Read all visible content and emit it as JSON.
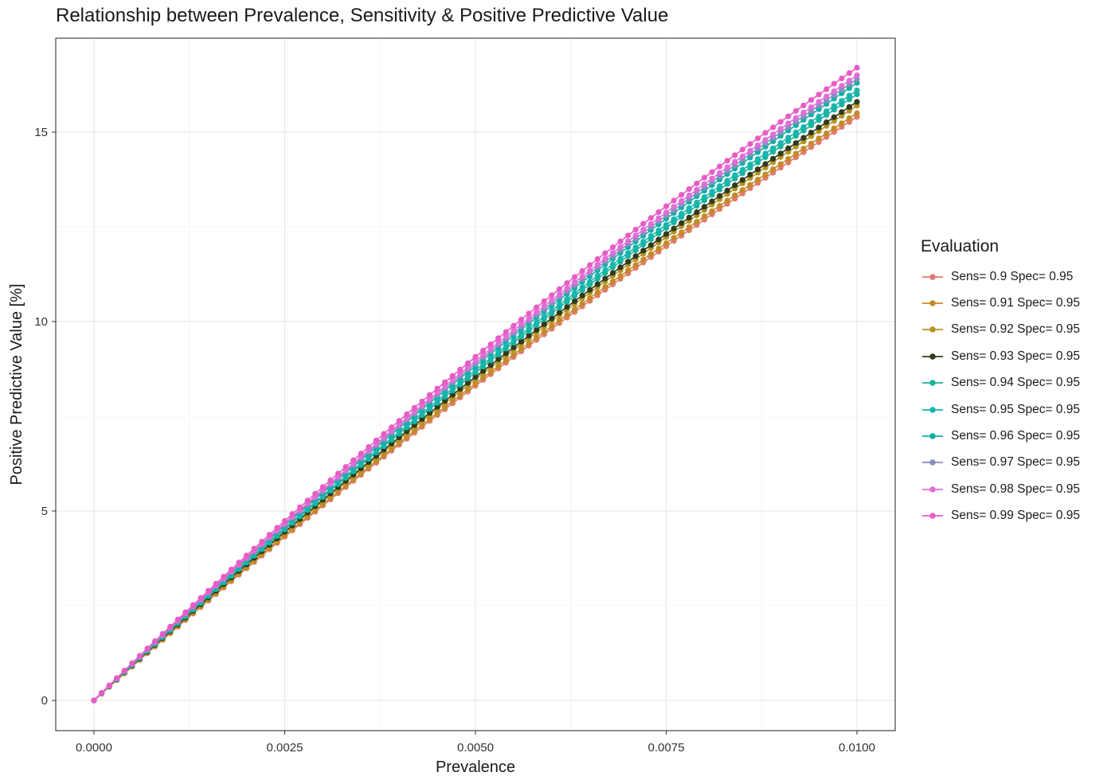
{
  "chart_data": {
    "type": "line",
    "title": "Relationship between Prevalence, Sensitivity & Positive Predictive Value",
    "xlabel": "Prevalence",
    "ylabel": "Positive Predictive Value [%]",
    "xlim": [
      0,
      0.01
    ],
    "ylim": [
      0,
      16.7
    ],
    "x_ticks": [
      "0.0000",
      "0.0025",
      "0.0050",
      "0.0075",
      "0.0100"
    ],
    "y_ticks": [
      "0",
      "5",
      "10",
      "15"
    ],
    "grid": true,
    "markers": true,
    "legend_position": "right",
    "legend_title": "Evaluation",
    "x": {
      "start": 0,
      "end": 0.01,
      "step": 0.0001
    },
    "series": [
      {
        "name": "Sens= 0.9 Spec= 0.95",
        "sensitivity": 0.9,
        "specificity": 0.95,
        "color": "#E07B6C",
        "end_value": 15.4
      },
      {
        "name": "Sens= 0.91 Spec= 0.95",
        "sensitivity": 0.91,
        "specificity": 0.95,
        "color": "#C48A2A",
        "end_value": 15.5
      },
      {
        "name": "Sens= 0.92 Spec= 0.95",
        "sensitivity": 0.92,
        "specificity": 0.95,
        "color": "#B59324",
        "end_value": 15.7
      },
      {
        "name": "Sens= 0.93 Spec= 0.95",
        "sensitivity": 0.93,
        "specificity": 0.95,
        "color": "#2E3B1F",
        "end_value": 15.8
      },
      {
        "name": "Sens= 0.94 Spec= 0.95",
        "sensitivity": 0.94,
        "specificity": 0.95,
        "color": "#19B39A",
        "end_value": 16.0
      },
      {
        "name": "Sens= 0.95 Spec= 0.95",
        "sensitivity": 0.95,
        "specificity": 0.95,
        "color": "#17B5B0",
        "end_value": 16.1
      },
      {
        "name": "Sens= 0.96 Spec= 0.95",
        "sensitivity": 0.96,
        "specificity": 0.95,
        "color": "#13AFA5",
        "end_value": 16.3
      },
      {
        "name": "Sens= 0.97 Spec= 0.95",
        "sensitivity": 0.97,
        "specificity": 0.95,
        "color": "#8C8CC0",
        "end_value": 16.4
      },
      {
        "name": "Sens= 0.98 Spec= 0.95",
        "sensitivity": 0.98,
        "specificity": 0.95,
        "color": "#E26DD9",
        "end_value": 16.5
      },
      {
        "name": "Sens= 0.99 Spec= 0.95",
        "sensitivity": 0.99,
        "specificity": 0.95,
        "color": "#E85CC5",
        "end_value": 16.7
      }
    ]
  }
}
